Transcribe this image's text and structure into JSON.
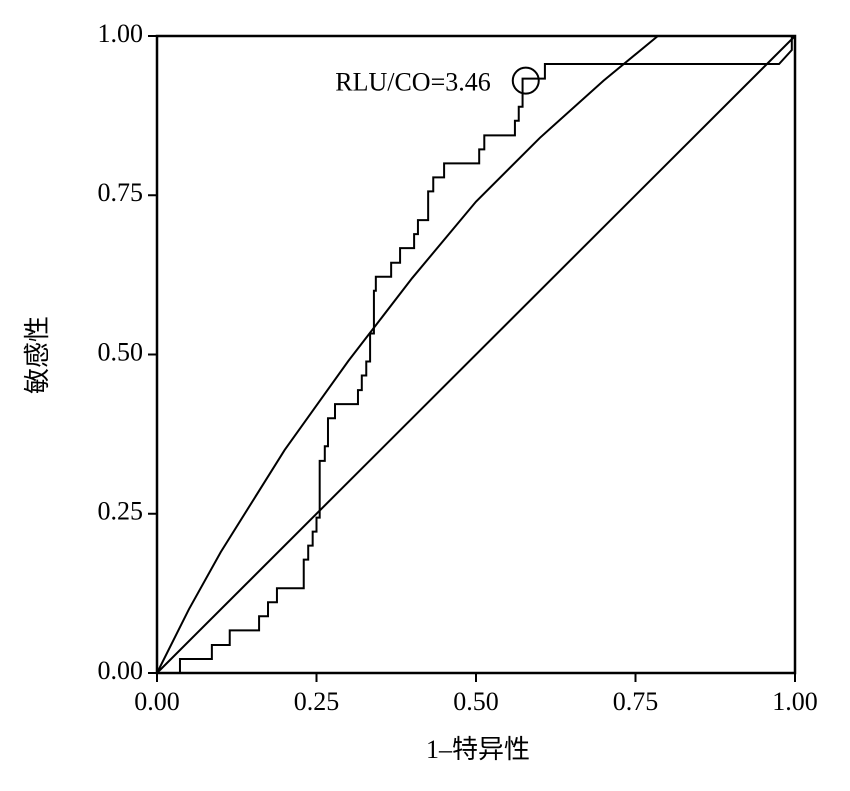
{
  "chart_data": {
    "type": "line",
    "x_label": "1–特异性",
    "y_label": "敏感性",
    "xlim": [
      0,
      1
    ],
    "ylim": [
      0,
      1
    ],
    "xticks": [
      {
        "value": 0,
        "label": "0.00"
      },
      {
        "value": 0.25,
        "label": "0.25"
      },
      {
        "value": 0.5,
        "label": "0.50"
      },
      {
        "value": 0.75,
        "label": "0.75"
      },
      {
        "value": 1,
        "label": "1.00"
      }
    ],
    "yticks": [
      {
        "value": 0,
        "label": "0.00"
      },
      {
        "value": 0.25,
        "label": "0.25"
      },
      {
        "value": 0.5,
        "label": "0.50"
      },
      {
        "value": 0.75,
        "label": "0.75"
      },
      {
        "value": 1,
        "label": "1.00"
      }
    ],
    "series": [
      {
        "color": "#000000",
        "x": [
          0,
          0.036,
          0.036,
          0.086,
          0.086,
          0.114,
          0.114,
          0.16,
          0.16,
          0.174,
          0.174,
          0.188,
          0.188,
          0.23,
          0.23,
          0.237,
          0.237,
          0.244,
          0.244,
          0.25,
          0.25,
          0.255,
          0.255,
          0.263,
          0.263,
          0.268,
          0.268,
          0.279,
          0.279,
          0.315,
          0.315,
          0.321,
          0.321,
          0.328,
          0.328,
          0.334,
          0.334,
          0.34,
          0.34,
          0.343,
          0.343,
          0.367,
          0.367,
          0.381,
          0.381,
          0.403,
          0.403,
          0.409,
          0.409,
          0.425,
          0.425,
          0.433,
          0.433,
          0.45,
          0.45,
          0.505,
          0.505,
          0.513,
          0.513,
          0.561,
          0.561,
          0.567,
          0.567,
          0.573,
          0.573,
          0.608,
          0.608,
          0.975,
          0.995,
          0.995,
          1
        ],
        "values": [
          0,
          0,
          0.022,
          0.022,
          0.044,
          0.044,
          0.067,
          0.067,
          0.089,
          0.089,
          0.111,
          0.111,
          0.133,
          0.133,
          0.178,
          0.178,
          0.2,
          0.2,
          0.222,
          0.222,
          0.244,
          0.244,
          0.333,
          0.333,
          0.356,
          0.356,
          0.4,
          0.4,
          0.422,
          0.422,
          0.444,
          0.444,
          0.467,
          0.467,
          0.489,
          0.489,
          0.533,
          0.533,
          0.6,
          0.6,
          0.622,
          0.622,
          0.644,
          0.644,
          0.667,
          0.667,
          0.689,
          0.689,
          0.711,
          0.711,
          0.756,
          0.756,
          0.778,
          0.778,
          0.8,
          0.8,
          0.822,
          0.822,
          0.844,
          0.844,
          0.867,
          0.867,
          0.889,
          0.889,
          0.933,
          0.933,
          0.956,
          0.956,
          0.978,
          1.0,
          1
        ]
      },
      {
        "color": "#000000",
        "x": [
          0,
          0.05,
          0.1,
          0.2,
          0.3,
          0.4,
          0.5,
          0.6,
          0.7,
          0.785
        ],
        "values": [
          0,
          0.1,
          0.19,
          0.35,
          0.49,
          0.62,
          0.74,
          0.84,
          0.93,
          1.0
        ]
      },
      {
        "color": "#000000",
        "x": [
          0,
          1
        ],
        "values": [
          0,
          1
        ]
      }
    ],
    "annotation": {
      "text": "RLU/CO=3.46",
      "x": 0.578,
      "y": 0.93
    }
  }
}
